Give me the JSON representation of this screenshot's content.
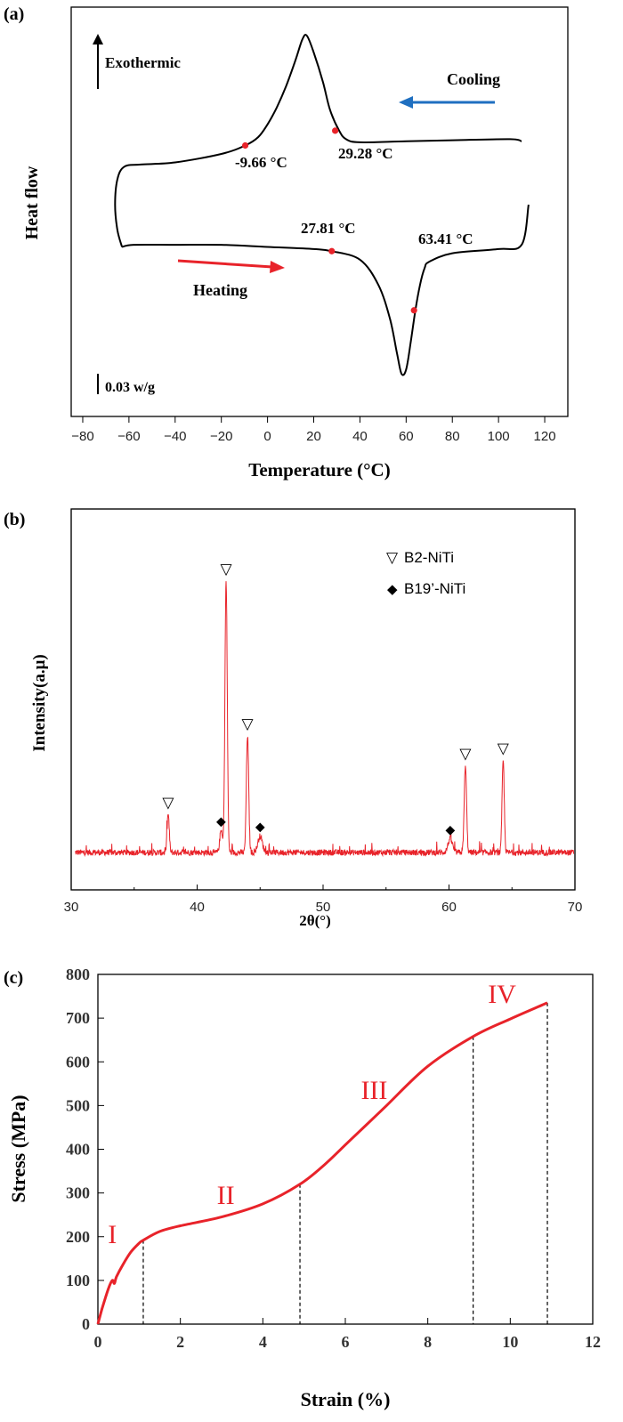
{
  "chart_data": [
    {
      "panel": "(a)",
      "type": "line",
      "xlabel": "Temperature (°C)",
      "ylabel": "Heat flow",
      "xlim": [
        -85,
        130
      ],
      "xticks": [
        -80,
        -60,
        -40,
        -20,
        0,
        20,
        40,
        60,
        80,
        100,
        120
      ],
      "series": [
        {
          "role": "cooling-curve (upper, exothermic peak)",
          "x": [
            110,
            105,
            80,
            60,
            40,
            34,
            31,
            27,
            24,
            20,
            17,
            15,
            12,
            8,
            4,
            0,
            -4,
            -9.66,
            -20,
            -40,
            -55,
            -62,
            -65,
            -66,
            -65,
            -63
          ],
          "y": [
            0.9,
            0.91,
            0.905,
            0.9,
            0.895,
            0.91,
            0.95,
            1.05,
            1.18,
            1.32,
            1.4,
            1.38,
            1.28,
            1.16,
            1.06,
            0.98,
            0.92,
            0.88,
            0.84,
            0.8,
            0.79,
            0.78,
            0.72,
            0.6,
            0.48,
            0.4
          ]
        },
        {
          "role": "heating-curve (lower, endothermic valley)",
          "x": [
            -63,
            -58,
            -40,
            -20,
            0,
            20,
            27.81,
            40,
            48,
            53,
            56,
            58,
            60,
            62,
            64,
            66,
            68,
            70,
            80,
            100,
            110,
            113
          ],
          "y": [
            0.4,
            0.41,
            0.41,
            0.41,
            0.4,
            0.39,
            0.38,
            0.34,
            0.22,
            0.06,
            -0.1,
            -0.2,
            -0.18,
            -0.05,
            0.1,
            0.22,
            0.3,
            0.33,
            0.37,
            0.39,
            0.41,
            0.6
          ]
        }
      ],
      "annotations": [
        {
          "text": "-9.66 °C",
          "x": -9.66,
          "curve": "cooling"
        },
        {
          "text": "29.28 °C",
          "x": 29.28,
          "curve": "cooling"
        },
        {
          "text": "27.81 °C",
          "x": 27.81,
          "curve": "heating"
        },
        {
          "text": "63.41 °C",
          "x": 63.41,
          "curve": "heating"
        }
      ],
      "labels": {
        "exothermic": "Exothermic",
        "cooling": "Cooling",
        "heating": "Heating",
        "scale": "0.03 w/g"
      },
      "colors": {
        "curve": "#000000",
        "cooling_arrow": "#1f6fc0",
        "heating_arrow": "#e8232a",
        "marker": "#e8232a"
      }
    },
    {
      "panel": "(b)",
      "type": "line",
      "xlabel": "2θ(°)",
      "ylabel": "Intensity(a.μ)",
      "xlim": [
        30,
        70
      ],
      "xticks": [
        30,
        40,
        50,
        60,
        70
      ],
      "peaks": [
        {
          "x": 37.7,
          "height": 0.14,
          "width": 0.12
        },
        {
          "x": 41.9,
          "height": 0.08,
          "width": 0.15
        },
        {
          "x": 42.3,
          "height": 1.0,
          "width": 0.13
        },
        {
          "x": 44.0,
          "height": 0.43,
          "width": 0.13
        },
        {
          "x": 45.0,
          "height": 0.06,
          "width": 0.25
        },
        {
          "x": 60.1,
          "height": 0.05,
          "width": 0.25
        },
        {
          "x": 61.3,
          "height": 0.32,
          "width": 0.13
        },
        {
          "x": 64.3,
          "height": 0.34,
          "width": 0.12
        }
      ],
      "markers": [
        {
          "symbol": "▽",
          "x": 37.7,
          "phase": "B2-NiTi"
        },
        {
          "symbol": "▽",
          "x": 42.3,
          "phase": "B2-NiTi"
        },
        {
          "symbol": "▽",
          "x": 44.0,
          "phase": "B2-NiTi"
        },
        {
          "symbol": "▽",
          "x": 61.3,
          "phase": "B2-NiTi"
        },
        {
          "symbol": "▽",
          "x": 64.3,
          "phase": "B2-NiTi"
        },
        {
          "symbol": "◆",
          "x": 41.9,
          "phase": "B19’-NiTi"
        },
        {
          "symbol": "◆",
          "x": 45.0,
          "phase": "B19’-NiTi"
        },
        {
          "symbol": "◆",
          "x": 60.1,
          "phase": "B19’-NiTi"
        }
      ],
      "legend": [
        {
          "symbol": "▽",
          "label": "B2-NiTi"
        },
        {
          "symbol": "◆",
          "label": "B19’-NiTi"
        }
      ],
      "legend_position": "top-right",
      "colors": {
        "line": "#e8232a"
      }
    },
    {
      "panel": "(c)",
      "type": "line",
      "xlabel": "Strain (%)",
      "ylabel": "Stress (MPa)",
      "xlim": [
        0,
        12
      ],
      "ylim": [
        0,
        800
      ],
      "xticks": [
        0,
        2,
        4,
        6,
        8,
        10,
        12
      ],
      "yticks": [
        0,
        100,
        200,
        300,
        400,
        500,
        600,
        700,
        800
      ],
      "series": [
        {
          "x": [
            0,
            0.1,
            0.25,
            0.35,
            0.4,
            0.45,
            0.6,
            0.8,
            1.0,
            1.1,
            1.5,
            2.0,
            3.0,
            4.0,
            4.9,
            5.5,
            6.0,
            6.5,
            7.0,
            8.0,
            9.1,
            10.0,
            10.9
          ],
          "y": [
            0,
            35,
            80,
            100,
            93,
            108,
            135,
            165,
            185,
            192,
            212,
            225,
            245,
            275,
            320,
            365,
            410,
            455,
            500,
            590,
            658,
            698,
            735
          ]
        }
      ],
      "boundaries": [
        1.1,
        4.9,
        9.1,
        10.9
      ],
      "regions": [
        {
          "label": "I",
          "x": 0.35,
          "y": 185
        },
        {
          "label": "II",
          "x": 3.1,
          "y": 275
        },
        {
          "label": "III",
          "x": 6.7,
          "y": 515
        },
        {
          "label": "IV",
          "x": 9.8,
          "y": 735
        }
      ],
      "colors": {
        "line": "#e8232a",
        "regions": "#e8232a"
      }
    }
  ]
}
